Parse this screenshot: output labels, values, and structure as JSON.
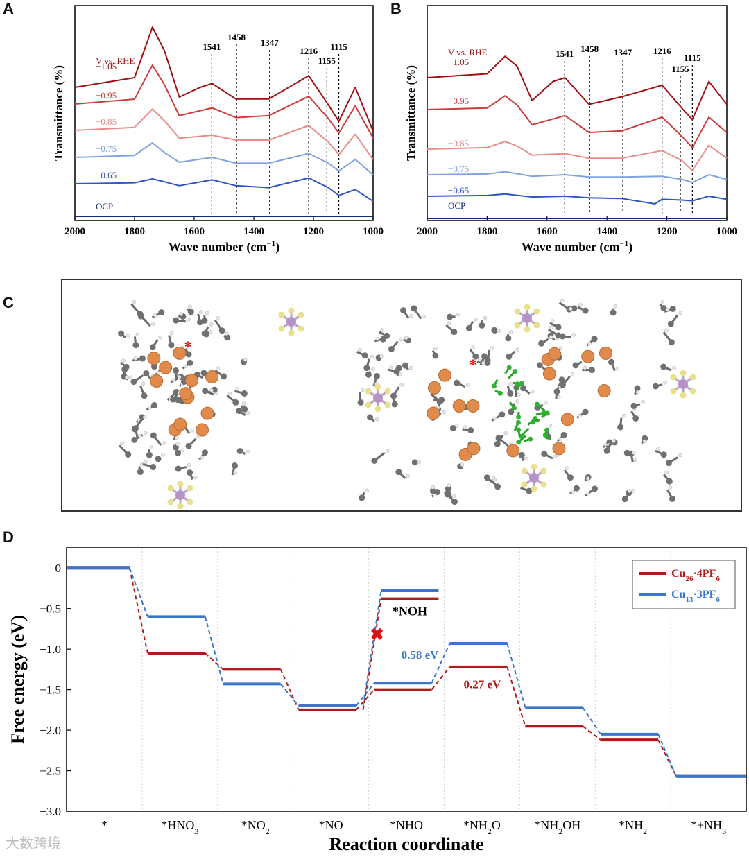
{
  "panels": {
    "A": "A",
    "B": "B",
    "C": "C",
    "D": "D"
  },
  "chart_data": [
    {
      "id": "A",
      "type": "line",
      "xlabel": "Wave number (cm−1)",
      "ylabel": "Transmittance (%)",
      "xlim": [
        2000,
        1000
      ],
      "xticks": [
        2000,
        1800,
        1600,
        1400,
        1200,
        1000
      ],
      "legend_title": "V vs. RHE",
      "reference_lines": [
        1541,
        1458,
        1347,
        1216,
        1155,
        1115
      ],
      "series": [
        {
          "name": "−1.05",
          "color": "#a01010",
          "values": [
            [
              2000,
              0.0
            ],
            [
              1800,
              0.1
            ],
            [
              1740,
              0.62
            ],
            [
              1700,
              0.38
            ],
            [
              1650,
              -0.1
            ],
            [
              1580,
              0.0
            ],
            [
              1540,
              0.04
            ],
            [
              1460,
              -0.12
            ],
            [
              1350,
              -0.12
            ],
            [
              1216,
              0.12
            ],
            [
              1150,
              -0.18
            ],
            [
              1115,
              -0.35
            ],
            [
              1060,
              0.0
            ],
            [
              1000,
              -0.45
            ]
          ]
        },
        {
          "name": "−0.95",
          "color": "#cf3b3b",
          "values": [
            [
              2000,
              0.0
            ],
            [
              1800,
              0.05
            ],
            [
              1740,
              0.4
            ],
            [
              1700,
              0.2
            ],
            [
              1650,
              -0.12
            ],
            [
              1540,
              -0.04
            ],
            [
              1460,
              -0.14
            ],
            [
              1350,
              -0.12
            ],
            [
              1216,
              0.08
            ],
            [
              1150,
              -0.15
            ],
            [
              1115,
              -0.3
            ],
            [
              1060,
              -0.02
            ],
            [
              1000,
              -0.35
            ]
          ]
        },
        {
          "name": "−0.85",
          "color": "#e98b86",
          "values": [
            [
              2000,
              0.0
            ],
            [
              1800,
              0.03
            ],
            [
              1740,
              0.22
            ],
            [
              1700,
              0.1
            ],
            [
              1650,
              -0.08
            ],
            [
              1540,
              -0.05
            ],
            [
              1460,
              -0.1
            ],
            [
              1350,
              -0.1
            ],
            [
              1216,
              0.05
            ],
            [
              1150,
              -0.12
            ],
            [
              1115,
              -0.25
            ],
            [
              1060,
              -0.04
            ],
            [
              1000,
              -0.3
            ]
          ]
        },
        {
          "name": "−0.75",
          "color": "#7ea3df",
          "values": [
            [
              2000,
              0.0
            ],
            [
              1800,
              0.02
            ],
            [
              1740,
              0.15
            ],
            [
              1700,
              0.05
            ],
            [
              1650,
              -0.05
            ],
            [
              1540,
              0.0
            ],
            [
              1460,
              -0.06
            ],
            [
              1350,
              -0.06
            ],
            [
              1216,
              0.04
            ],
            [
              1150,
              -0.06
            ],
            [
              1115,
              -0.14
            ],
            [
              1060,
              -0.02
            ],
            [
              1000,
              -0.18
            ]
          ]
        },
        {
          "name": "−0.65",
          "color": "#2f55c2",
          "values": [
            [
              2000,
              0.0
            ],
            [
              1800,
              0.01
            ],
            [
              1740,
              0.05
            ],
            [
              1700,
              0.02
            ],
            [
              1650,
              -0.02
            ],
            [
              1540,
              0.04
            ],
            [
              1460,
              -0.02
            ],
            [
              1350,
              -0.04
            ],
            [
              1216,
              0.06
            ],
            [
              1150,
              -0.04
            ],
            [
              1115,
              -0.12
            ],
            [
              1060,
              -0.06
            ],
            [
              1000,
              -0.18
            ]
          ]
        },
        {
          "name": "OCP",
          "color": "#0d2a7a",
          "values": [
            [
              2000,
              0.0
            ],
            [
              1500,
              0.0
            ],
            [
              1000,
              0.0
            ]
          ]
        }
      ]
    },
    {
      "id": "B",
      "type": "line",
      "xlabel": "Wave number (cm−1)",
      "ylabel": "Transmittance (%)",
      "xlim": [
        2000,
        1000
      ],
      "xticks": [
        2000,
        1800,
        1600,
        1400,
        1200,
        1000
      ],
      "legend_title": "V vs. RHE",
      "reference_lines": [
        1541,
        1458,
        1347,
        1216,
        1155,
        1115
      ],
      "series": [
        {
          "name": "−1.05",
          "color": "#a01010",
          "values": [
            [
              2000,
              0.0
            ],
            [
              1800,
              0.05
            ],
            [
              1740,
              0.28
            ],
            [
              1700,
              0.15
            ],
            [
              1650,
              -0.3
            ],
            [
              1580,
              -0.05
            ],
            [
              1540,
              0.0
            ],
            [
              1460,
              -0.35
            ],
            [
              1350,
              -0.25
            ],
            [
              1216,
              -0.1
            ],
            [
              1150,
              -0.4
            ],
            [
              1115,
              -0.55
            ],
            [
              1060,
              -0.05
            ],
            [
              1000,
              -0.35
            ]
          ]
        },
        {
          "name": "−0.95",
          "color": "#cf3b3b",
          "values": [
            [
              2000,
              0.0
            ],
            [
              1800,
              0.02
            ],
            [
              1740,
              0.18
            ],
            [
              1700,
              0.06
            ],
            [
              1650,
              -0.2
            ],
            [
              1540,
              -0.08
            ],
            [
              1460,
              -0.3
            ],
            [
              1350,
              -0.28
            ],
            [
              1216,
              -0.1
            ],
            [
              1150,
              -0.35
            ],
            [
              1115,
              -0.5
            ],
            [
              1060,
              -0.1
            ],
            [
              1000,
              -0.3
            ]
          ]
        },
        {
          "name": "−0.85",
          "color": "#e98b86",
          "values": [
            [
              2000,
              0.0
            ],
            [
              1800,
              0.02
            ],
            [
              1740,
              0.1
            ],
            [
              1700,
              0.04
            ],
            [
              1650,
              -0.08
            ],
            [
              1540,
              -0.06
            ],
            [
              1460,
              -0.12
            ],
            [
              1350,
              -0.12
            ],
            [
              1216,
              -0.02
            ],
            [
              1150,
              -0.15
            ],
            [
              1115,
              -0.28
            ],
            [
              1060,
              0.05
            ],
            [
              1000,
              -0.12
            ]
          ]
        },
        {
          "name": "−0.75",
          "color": "#7ea3df",
          "values": [
            [
              2000,
              0.0
            ],
            [
              1800,
              0.01
            ],
            [
              1740,
              0.04
            ],
            [
              1650,
              -0.02
            ],
            [
              1540,
              0.0
            ],
            [
              1460,
              -0.03
            ],
            [
              1350,
              -0.03
            ],
            [
              1216,
              -0.02
            ],
            [
              1150,
              -0.06
            ],
            [
              1115,
              -0.1
            ],
            [
              1060,
              0.0
            ],
            [
              1000,
              -0.06
            ]
          ]
        },
        {
          "name": "−0.65",
          "color": "#2f55c2",
          "values": [
            [
              2000,
              0.0
            ],
            [
              1800,
              0.01
            ],
            [
              1740,
              0.03
            ],
            [
              1650,
              -0.01
            ],
            [
              1540,
              0.0
            ],
            [
              1460,
              -0.02
            ],
            [
              1350,
              -0.03
            ],
            [
              1240,
              -0.1
            ],
            [
              1216,
              -0.04
            ],
            [
              1150,
              -0.05
            ],
            [
              1115,
              -0.06
            ],
            [
              1060,
              0.0
            ],
            [
              1000,
              -0.04
            ]
          ]
        },
        {
          "name": "OCP",
          "color": "#0d2a7a",
          "values": [
            [
              2000,
              0.0
            ],
            [
              1500,
              0.0
            ],
            [
              1000,
              0.0
            ]
          ]
        }
      ]
    },
    {
      "id": "D",
      "type": "line",
      "xlabel": "Reaction coordinate",
      "ylabel": "Free energy (eV)",
      "ylim": [
        -3.0,
        0.25
      ],
      "yticks": [
        0,
        -0.5,
        -1.0,
        -1.5,
        -2.0,
        -2.5,
        -3.0
      ],
      "categories": [
        "*",
        "*HNO3",
        "*NO2",
        "*NO",
        "*NHO",
        "*NH2O",
        "*NH2OH",
        "*NH2",
        "*+NH3"
      ],
      "category_labels": [
        {
          "base": "*",
          "sub": ""
        },
        {
          "base": "*HNO",
          "sub": "3"
        },
        {
          "base": "*NO",
          "sub": "2"
        },
        {
          "base": "*NO",
          "sub": ""
        },
        {
          "base": "*NHO",
          "sub": ""
        },
        {
          "base": "*NH",
          "sub": "2",
          "tail": "O"
        },
        {
          "base": "*NH",
          "sub": "2",
          "tail": "OH"
        },
        {
          "base": "*NH",
          "sub": "2"
        },
        {
          "base": "*+NH",
          "sub": "3"
        }
      ],
      "series": [
        {
          "name": "Cu26·4PF6",
          "color": "#b01a1a",
          "values": [
            0.0,
            -1.05,
            -1.25,
            -1.75,
            -1.5,
            -1.22,
            -1.95,
            -2.12,
            -2.57
          ]
        },
        {
          "name": "Cu13·3PF6",
          "color": "#3a76c9",
          "values": [
            0.0,
            -0.6,
            -1.43,
            -1.7,
            -1.42,
            -0.93,
            -1.72,
            -2.05,
            -2.57
          ]
        }
      ],
      "branch": {
        "label": "*NOH",
        "red": -0.38,
        "blue": -0.28,
        "red_at": "*NHO"
      },
      "annotations": [
        {
          "text": "0.58 eV",
          "color": "#3a76c9"
        },
        {
          "text": "0.27 eV",
          "color": "#b01a1a"
        }
      ],
      "legend": [
        {
          "base": "Cu",
          "sub1": "26",
          "mid": "·4PF",
          "sub2": "6",
          "color": "#b01a1a"
        },
        {
          "base": "Cu",
          "sub1": "13",
          "mid": "·3PF",
          "sub2": "6",
          "color": "#3a76c9"
        }
      ]
    }
  ],
  "watermark": "大数跨境"
}
